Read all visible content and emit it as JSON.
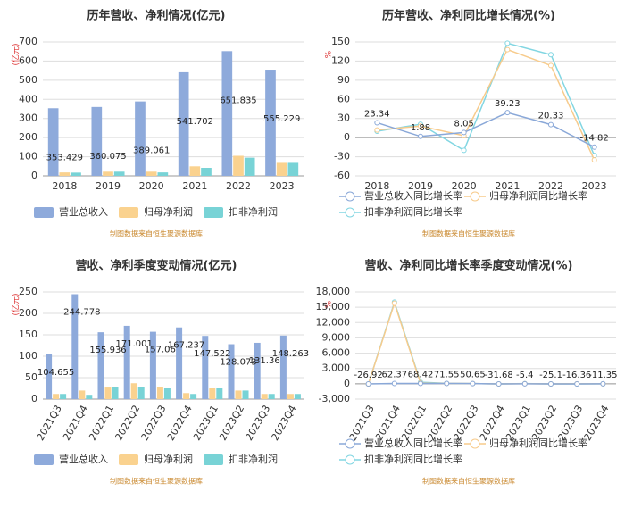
{
  "chart_data": [
    {
      "type": "bar",
      "title": "历年营收、净利情况(亿元)",
      "ylabel": "(亿元)",
      "source": "制图数据来自恒生聚源数据库",
      "categories": [
        "2018",
        "2019",
        "2020",
        "2021",
        "2022",
        "2023"
      ],
      "series": [
        {
          "name": "营业总收入",
          "color": "#8eaadb",
          "values": [
            353.429,
            360.075,
            389.061,
            541.702,
            651.835,
            555.229
          ]
        },
        {
          "name": "归母净利润",
          "color": "#fad28f",
          "values": [
            18,
            22,
            22,
            50,
            105,
            68
          ]
        },
        {
          "name": "扣非净利润",
          "color": "#78d3d6",
          "values": [
            17,
            22,
            18,
            42,
            95,
            68
          ]
        }
      ],
      "ylim": [
        0,
        700
      ],
      "yticks": [
        0,
        100,
        200,
        300,
        400,
        500,
        600,
        700
      ],
      "grid": true
    },
    {
      "type": "line",
      "title": "历年营收、净利同比增长情况(%)",
      "ylabel": "%",
      "source": "制图数据来自恒生聚源数据库",
      "categories": [
        "2018",
        "2019",
        "2020",
        "2021",
        "2022",
        "2023"
      ],
      "series": [
        {
          "name": "营业总收入同比增长率",
          "color": "#8aa8d8",
          "values": [
            23.34,
            1.88,
            8.05,
            39.23,
            20.33,
            -14.82
          ]
        },
        {
          "name": "归母净利润同比增长率",
          "color": "#f7cb8c",
          "values": [
            12,
            18,
            3,
            138,
            113,
            -35
          ]
        },
        {
          "name": "扣非净利润同比增长率",
          "color": "#82d6e2",
          "values": [
            10,
            21,
            -20,
            148,
            130,
            -28
          ]
        }
      ],
      "ylim": [
        -60,
        150
      ],
      "yticks": [
        -60,
        -30,
        0,
        30,
        60,
        90,
        120,
        150
      ],
      "grid": true
    },
    {
      "type": "bar",
      "title": "营收、净利季度变动情况(亿元)",
      "ylabel": "(亿元)",
      "source": "制图数据来自恒生聚源数据库",
      "categories": [
        "2021Q3",
        "2021Q4",
        "2022Q1",
        "2022Q2",
        "2022Q3",
        "2022Q4",
        "2023Q1",
        "2023Q2",
        "2023Q3",
        "2023Q4"
      ],
      "series": [
        {
          "name": "营业总收入",
          "color": "#8eaadb",
          "values": [
            104.655,
            244.778,
            155.936,
            171.001,
            157.06,
            167.237,
            147.522,
            128.073,
            131.36,
            148.263
          ]
        },
        {
          "name": "归母净利润",
          "color": "#fad28f",
          "values": [
            12,
            20,
            27,
            37,
            28,
            14,
            25,
            20,
            12,
            12
          ]
        },
        {
          "name": "扣非净利润",
          "color": "#78d3d6",
          "values": [
            12,
            10,
            28,
            28,
            25,
            12,
            25,
            20,
            12,
            12
          ]
        }
      ],
      "ylim": [
        0,
        250
      ],
      "yticks": [
        0,
        50,
        100,
        150,
        200,
        250
      ],
      "grid": true
    },
    {
      "type": "line",
      "title": "营收、净利同比增长率季度变动情况(%)",
      "ylabel": "%",
      "source": "制图数据来自恒生聚源数据库",
      "categories": [
        "2021Q3",
        "2021Q4",
        "2022Q1",
        "2022Q2",
        "2022Q3",
        "2022Q4",
        "2023Q1",
        "2023Q2",
        "2023Q3",
        "2023Q4"
      ],
      "series": [
        {
          "name": "营业总收入同比增长率",
          "color": "#8aa8d8",
          "values": [
            -26.92,
            62.37,
            68.42,
            71.55,
            50.65,
            -31.68,
            -5.4,
            -25.1,
            -16.36,
            -11.35
          ]
        },
        {
          "name": "归母净利润同比增长率",
          "color": "#f7cb8c",
          "values": [
            -40,
            15800,
            150,
            60,
            40,
            -30,
            20,
            -20,
            -10,
            -5
          ]
        },
        {
          "name": "扣非净利润同比增长率",
          "color": "#82d6e2",
          "values": [
            -45,
            16000,
            300,
            80,
            30,
            -20,
            30,
            -15,
            -15,
            -8
          ]
        }
      ],
      "ylim": [
        -3000,
        18000
      ],
      "yticks": [
        {
          "value": -3000,
          "label": "-3,000"
        },
        0,
        {
          "value": 3000,
          "label": "3,000"
        },
        {
          "value": 6000,
          "label": "6,000"
        },
        {
          "value": 9000,
          "label": "9,000"
        },
        {
          "value": 12000,
          "label": "12,000"
        },
        {
          "value": 15000,
          "label": "15,000"
        },
        {
          "value": 18000,
          "label": "18,000"
        }
      ],
      "grid": true
    }
  ]
}
